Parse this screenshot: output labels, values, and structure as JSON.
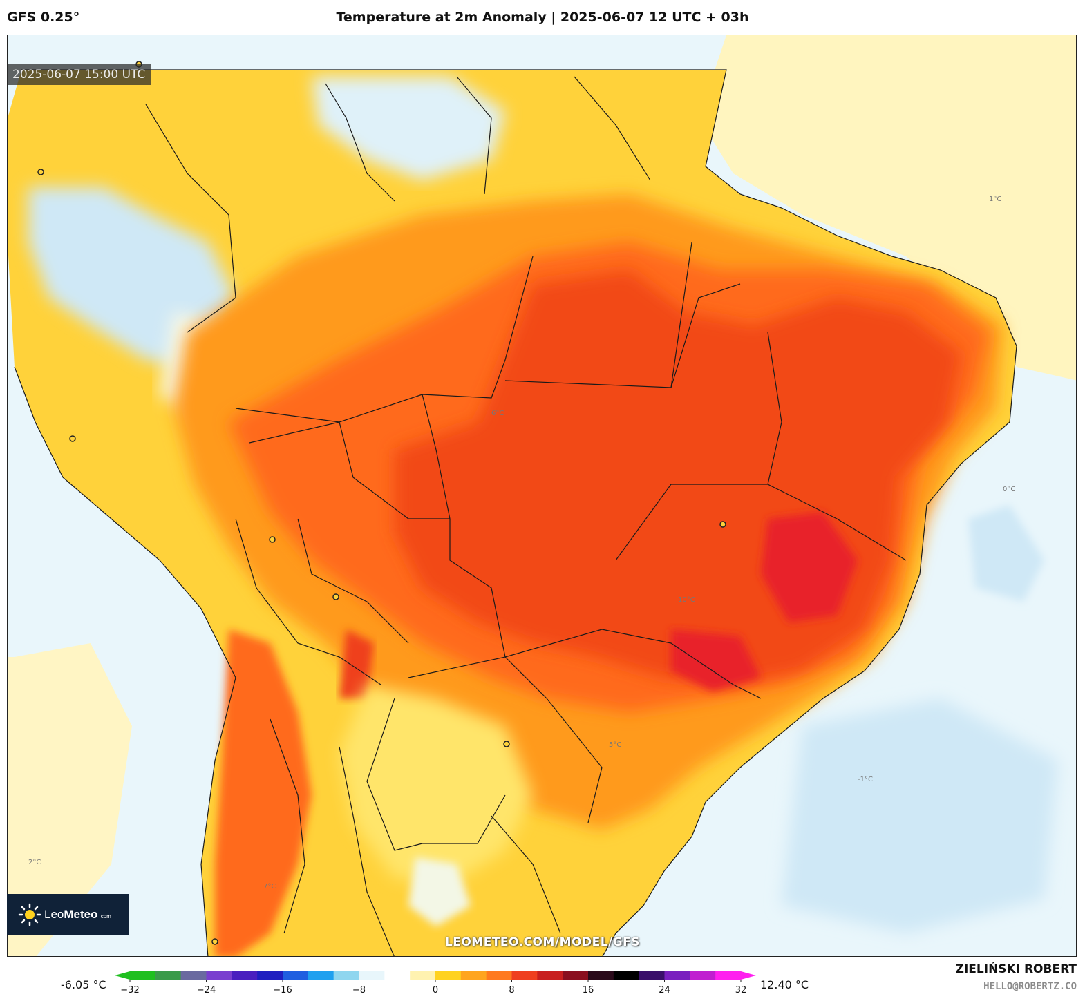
{
  "header": {
    "model": "GFS 0.25°",
    "title": "Temperature at 2m Anomaly | 2025-06-07 12 UTC + 03h"
  },
  "map": {
    "valid_time": "2025-06-07 15:00 UTC",
    "watermark": "LEOMETEO.COM/MODEL/GFS",
    "contour_labels": [
      "0°C",
      "1°C",
      "-1°C",
      "2°C",
      "5°C",
      "6°C",
      "7°C",
      "10°C"
    ]
  },
  "logo": {
    "name_light": "Leo",
    "name_bold": "Meteo",
    "suffix": ".com"
  },
  "colorbar": {
    "min_label": "-6.05 °C",
    "max_label": "12.40 °C",
    "ticks": [
      "−32",
      "−24",
      "−16",
      "−8",
      "0",
      "8",
      "16",
      "24",
      "32"
    ],
    "range": [
      -32,
      32
    ],
    "colors": [
      "#1fbf1f",
      "#3a9a4a",
      "#6a6aa0",
      "#7a3fcf",
      "#4a1fbf",
      "#1f1fc0",
      "#1f5fe0",
      "#1fa0ef",
      "#8fd6ef",
      "#e8f6fb",
      "#ffffff",
      "#fff2b0",
      "#ffd21f",
      "#ffa51f",
      "#ff7a1f",
      "#ef3f1f",
      "#c81f1f",
      "#8a0f1f",
      "#2a0a1a",
      "#000000",
      "#3a0f6a",
      "#7a1fbf",
      "#c01fd0",
      "#ff1fef"
    ]
  },
  "author": {
    "name": "ZIELIŃSKI ROBERT",
    "email": "HELLO@ROBERTZ.CO"
  }
}
